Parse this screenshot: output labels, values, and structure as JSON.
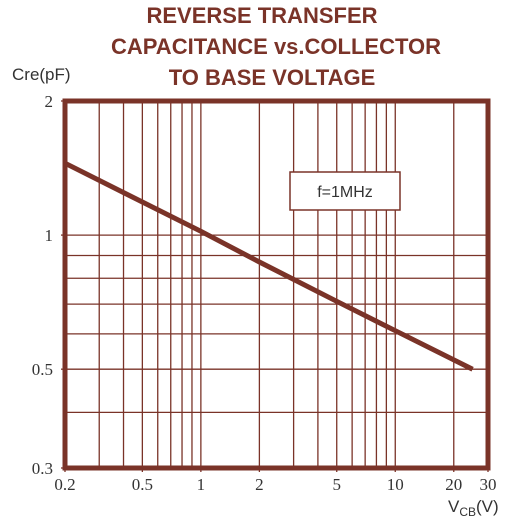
{
  "chart_data": {
    "type": "line",
    "title": [
      "REVERSE TRANSFER",
      "CAPACITANCE vs.COLLECTOR",
      "TO BASE VOLTAGE"
    ],
    "y_label": "Cre(pF)",
    "x_label": {
      "main": "V",
      "sub": "CB",
      "unit": "(V)"
    },
    "annotation": "f=1MHz",
    "log_x": true,
    "log_y": true,
    "xlim": [
      0.2,
      30
    ],
    "ylim": [
      0.3,
      2
    ],
    "xticks": [
      0.2,
      0.5,
      1,
      2,
      5,
      10,
      20,
      30
    ],
    "yticks": [
      0.3,
      0.5,
      1,
      2
    ],
    "xgrid": [
      0.3,
      0.4,
      0.5,
      0.6,
      0.7,
      0.8,
      0.9,
      1,
      2,
      3,
      4,
      5,
      6,
      7,
      8,
      9,
      10,
      20
    ],
    "ygrid": [
      0.4,
      0.5,
      0.6,
      0.7,
      0.8,
      0.9,
      1
    ],
    "grid": true,
    "series": [
      {
        "name": "Cre",
        "color": "#7a3328",
        "x": [
          0.2,
          1,
          2,
          5,
          10,
          25
        ],
        "values": [
          1.45,
          1.02,
          0.87,
          0.71,
          0.61,
          0.5
        ]
      }
    ]
  }
}
